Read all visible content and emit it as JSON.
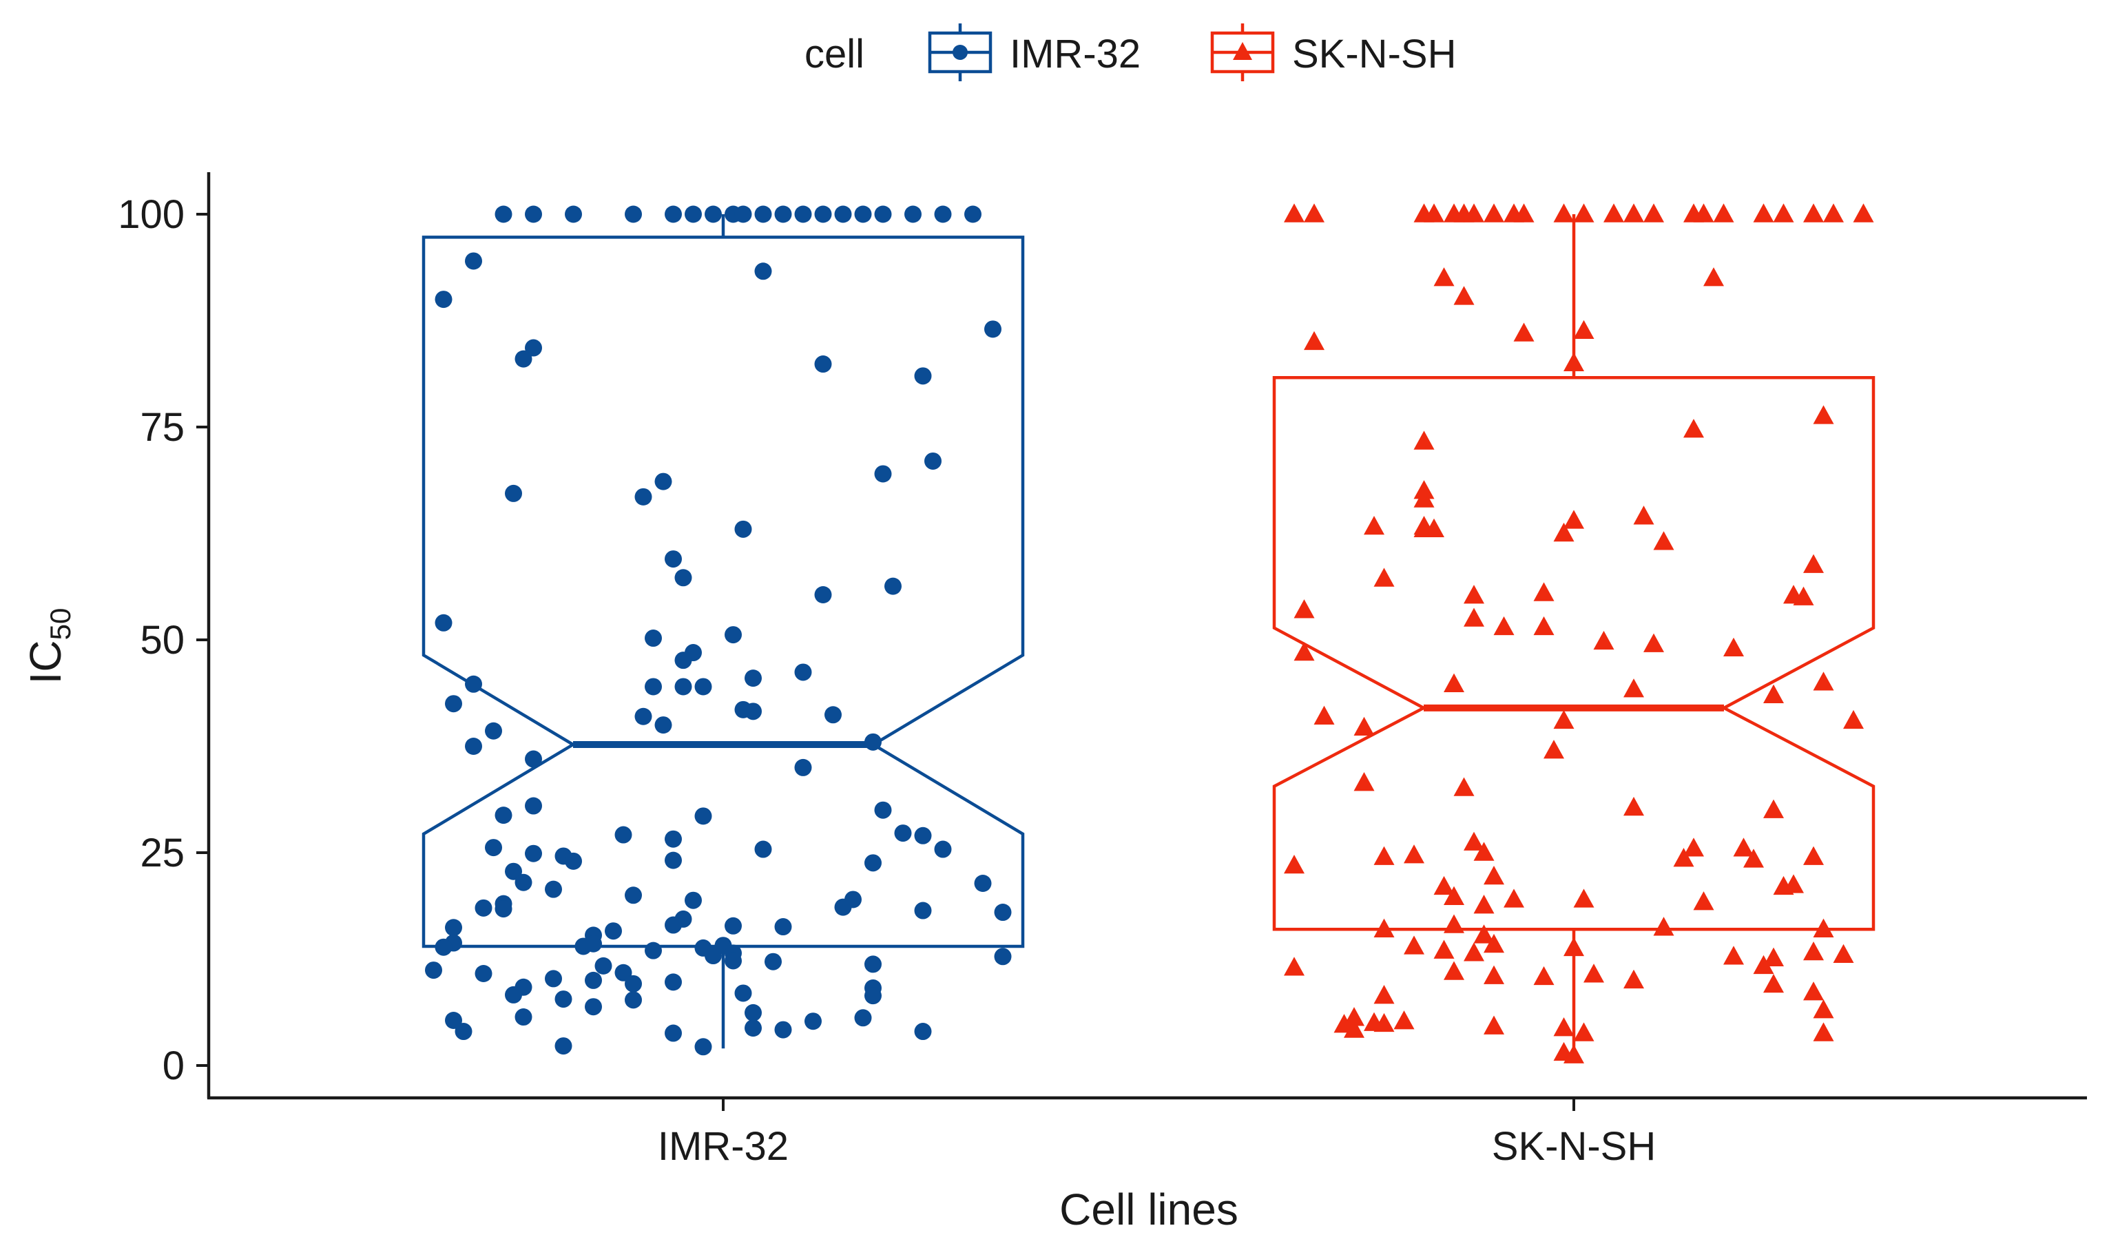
{
  "chart_data": {
    "type": "boxplot",
    "notched": true,
    "jitter_points": true,
    "xlabel": "Cell lines",
    "ylabel": "IC",
    "ylabel_sub": "50",
    "ylim": [
      -4,
      105
    ],
    "yticks": [
      0,
      25,
      50,
      75,
      100
    ],
    "categories": [
      "IMR-32",
      "SK-N-SH"
    ],
    "legend": {
      "title": "cell",
      "position": "top",
      "entries": [
        "IMR-32",
        "SK-N-SH"
      ]
    },
    "series": [
      {
        "name": "IMR-32",
        "color": "#0b4c94",
        "marker": "circle",
        "stats": {
          "lower_whisker": 2,
          "q1": 14,
          "median": 37.7,
          "q3": 97.3,
          "upper_whisker": 100,
          "notch_low": 27.2,
          "notch_high": 48.2
        },
        "points": [
          [
            -0.22,
            100
          ],
          [
            -0.19,
            100
          ],
          [
            -0.15,
            100
          ],
          [
            -0.09,
            100
          ],
          [
            -0.05,
            100
          ],
          [
            -0.03,
            100
          ],
          [
            -0.01,
            100
          ],
          [
            0.01,
            100
          ],
          [
            0.02,
            100
          ],
          [
            0.04,
            100
          ],
          [
            0.06,
            100
          ],
          [
            0.08,
            100
          ],
          [
            0.1,
            100
          ],
          [
            0.12,
            100
          ],
          [
            0.14,
            100
          ],
          [
            0.16,
            100
          ],
          [
            0.19,
            100
          ],
          [
            0.22,
            100
          ],
          [
            0.25,
            100
          ],
          [
            -0.25,
            94.5
          ],
          [
            -0.28,
            90
          ],
          [
            0.04,
            93.3
          ],
          [
            0.27,
            86.5
          ],
          [
            -0.19,
            84.3
          ],
          [
            -0.2,
            83
          ],
          [
            0.1,
            82.4
          ],
          [
            0.2,
            81
          ],
          [
            0.21,
            71
          ],
          [
            0.16,
            69.5
          ],
          [
            -0.06,
            68.6
          ],
          [
            -0.21,
            67.2
          ],
          [
            -0.08,
            66.8
          ],
          [
            0.02,
            63
          ],
          [
            -0.05,
            59.5
          ],
          [
            -0.04,
            57.3
          ],
          [
            0.17,
            56.3
          ],
          [
            0.1,
            55.3
          ],
          [
            -0.28,
            52
          ],
          [
            0.01,
            50.6
          ],
          [
            -0.07,
            50.2
          ],
          [
            -0.03,
            48.5
          ],
          [
            -0.04,
            47.6
          ],
          [
            0.08,
            46.2
          ],
          [
            0.03,
            45.5
          ],
          [
            -0.25,
            44.8
          ],
          [
            -0.07,
            44.5
          ],
          [
            -0.04,
            44.5
          ],
          [
            -0.02,
            44.5
          ],
          [
            -0.27,
            42.5
          ],
          [
            0.02,
            41.8
          ],
          [
            0.03,
            41.6
          ],
          [
            0.11,
            41.2
          ],
          [
            -0.08,
            41
          ],
          [
            -0.06,
            40
          ],
          [
            -0.23,
            39.3
          ],
          [
            0.15,
            38
          ],
          [
            -0.25,
            37.5
          ],
          [
            -0.19,
            36
          ],
          [
            0.08,
            35
          ],
          [
            -0.19,
            30.5
          ],
          [
            -0.22,
            29.4
          ],
          [
            -0.02,
            29.3
          ],
          [
            0.16,
            30
          ],
          [
            -0.1,
            27.1
          ],
          [
            0.18,
            27.3
          ],
          [
            0.2,
            27
          ],
          [
            -0.05,
            26.6
          ],
          [
            0.22,
            25.4
          ],
          [
            -0.23,
            25.6
          ],
          [
            0.04,
            25.4
          ],
          [
            -0.19,
            24.9
          ],
          [
            -0.16,
            24.6
          ],
          [
            -0.15,
            24
          ],
          [
            -0.05,
            24.1
          ],
          [
            0.15,
            23.8
          ],
          [
            -0.21,
            22.8
          ],
          [
            -0.2,
            21.5
          ],
          [
            0.26,
            21.4
          ],
          [
            -0.17,
            20.7
          ],
          [
            -0.09,
            20
          ],
          [
            -0.03,
            19.4
          ],
          [
            -0.22,
            19
          ],
          [
            0.13,
            19.5
          ],
          [
            0.12,
            18.6
          ],
          [
            -0.22,
            18.4
          ],
          [
            -0.24,
            18.5
          ],
          [
            0.2,
            18.2
          ],
          [
            0.28,
            18
          ],
          [
            -0.04,
            17.2
          ],
          [
            -0.05,
            16.5
          ],
          [
            0.01,
            16.4
          ],
          [
            0.06,
            16.3
          ],
          [
            -0.27,
            16.2
          ],
          [
            -0.11,
            15.8
          ],
          [
            -0.13,
            15.3
          ],
          [
            -0.27,
            14.4
          ],
          [
            -0.28,
            13.9
          ],
          [
            -0.14,
            14
          ],
          [
            -0.13,
            14.3
          ],
          [
            -0.07,
            13.5
          ],
          [
            -0.02,
            13.8
          ],
          [
            0.0,
            14.1
          ],
          [
            0.01,
            13.2
          ],
          [
            -0.01,
            12.9
          ],
          [
            0.01,
            12.3
          ],
          [
            0.05,
            12.2
          ],
          [
            0.28,
            12.8
          ],
          [
            -0.29,
            11.2
          ],
          [
            -0.24,
            10.8
          ],
          [
            -0.12,
            11.7
          ],
          [
            -0.1,
            10.9
          ],
          [
            -0.13,
            10
          ],
          [
            -0.17,
            10.2
          ],
          [
            0.15,
            11.9
          ],
          [
            -0.05,
            9.8
          ],
          [
            -0.09,
            9.6
          ],
          [
            -0.2,
            9.2
          ],
          [
            -0.21,
            8.3
          ],
          [
            -0.16,
            7.8
          ],
          [
            -0.09,
            7.7
          ],
          [
            0.02,
            8.5
          ],
          [
            0.15,
            9.1
          ],
          [
            0.15,
            8.2
          ],
          [
            -0.13,
            6.9
          ],
          [
            0.03,
            6.2
          ],
          [
            -0.2,
            5.7
          ],
          [
            -0.27,
            5.3
          ],
          [
            0.09,
            5.2
          ],
          [
            0.14,
            5.6
          ],
          [
            -0.26,
            4
          ],
          [
            0.06,
            4.2
          ],
          [
            0.03,
            4.4
          ],
          [
            0.2,
            4
          ],
          [
            -0.05,
            3.8
          ],
          [
            -0.16,
            2.3
          ],
          [
            -0.02,
            2.2
          ]
        ]
      },
      {
        "name": "SK-N-SH",
        "color": "#ee2a0f",
        "marker": "triangle",
        "stats": {
          "lower_whisker": 2,
          "q1": 16,
          "median": 42,
          "q3": 80.8,
          "upper_whisker": 100,
          "notch_low": 32.8,
          "notch_high": 51.4
        },
        "points": [
          [
            -0.28,
            100
          ],
          [
            -0.26,
            100
          ],
          [
            -0.15,
            100
          ],
          [
            -0.14,
            100
          ],
          [
            -0.12,
            100
          ],
          [
            -0.11,
            100
          ],
          [
            -0.1,
            100
          ],
          [
            -0.08,
            100
          ],
          [
            -0.06,
            100
          ],
          [
            -0.05,
            100
          ],
          [
            -0.01,
            100
          ],
          [
            0.01,
            100
          ],
          [
            0.04,
            100
          ],
          [
            0.06,
            100
          ],
          [
            0.08,
            100
          ],
          [
            0.12,
            100
          ],
          [
            0.13,
            100
          ],
          [
            0.15,
            100
          ],
          [
            0.19,
            100
          ],
          [
            0.21,
            100
          ],
          [
            0.24,
            100
          ],
          [
            0.26,
            100
          ],
          [
            0.29,
            100
          ],
          [
            -0.13,
            92.5
          ],
          [
            -0.11,
            90.3
          ],
          [
            0.14,
            92.5
          ],
          [
            -0.05,
            86
          ],
          [
            0.01,
            86.3
          ],
          [
            -0.26,
            85
          ],
          [
            0.0,
            82.5
          ],
          [
            0.12,
            74.7
          ],
          [
            0.25,
            76.3
          ],
          [
            -0.15,
            73.3
          ],
          [
            -0.15,
            67.5
          ],
          [
            -0.15,
            66.5
          ],
          [
            -0.2,
            63.3
          ],
          [
            -0.15,
            63.3
          ],
          [
            -0.15,
            63
          ],
          [
            -0.14,
            63
          ],
          [
            0.0,
            64
          ],
          [
            -0.01,
            62.5
          ],
          [
            0.07,
            64.5
          ],
          [
            0.09,
            61.5
          ],
          [
            -0.19,
            57.2
          ],
          [
            -0.1,
            55.2
          ],
          [
            -0.03,
            55.5
          ],
          [
            0.24,
            58.8
          ],
          [
            0.22,
            55.2
          ],
          [
            0.23,
            55
          ],
          [
            -0.27,
            53.5
          ],
          [
            -0.1,
            52.5
          ],
          [
            -0.07,
            51.5
          ],
          [
            -0.03,
            51.5
          ],
          [
            0.03,
            49.8
          ],
          [
            0.08,
            49.5
          ],
          [
            0.16,
            49
          ],
          [
            -0.27,
            48.5
          ],
          [
            -0.12,
            44.8
          ],
          [
            0.06,
            44.2
          ],
          [
            0.25,
            45
          ],
          [
            0.2,
            43.5
          ],
          [
            0.28,
            40.5
          ],
          [
            -0.25,
            41
          ],
          [
            -0.21,
            39.7
          ],
          [
            -0.01,
            40.5
          ],
          [
            -0.02,
            37
          ],
          [
            -0.21,
            33.2
          ],
          [
            -0.11,
            32.6
          ],
          [
            0.06,
            30.3
          ],
          [
            0.2,
            30
          ],
          [
            -0.1,
            26.2
          ],
          [
            -0.09,
            25
          ],
          [
            0.12,
            25.5
          ],
          [
            0.17,
            25.5
          ],
          [
            0.18,
            24.2
          ],
          [
            0.24,
            24.5
          ],
          [
            0.11,
            24.3
          ],
          [
            -0.19,
            24.5
          ],
          [
            -0.16,
            24.7
          ],
          [
            -0.28,
            23.5
          ],
          [
            -0.08,
            22.2
          ],
          [
            -0.13,
            21
          ],
          [
            0.01,
            19.5
          ],
          [
            0.13,
            19.2
          ],
          [
            -0.12,
            19.8
          ],
          [
            -0.06,
            19.5
          ],
          [
            -0.09,
            18.8
          ],
          [
            0.21,
            21
          ],
          [
            0.22,
            21.2
          ],
          [
            -0.19,
            16
          ],
          [
            -0.12,
            16.5
          ],
          [
            0.09,
            16.2
          ],
          [
            0.25,
            16
          ],
          [
            -0.16,
            14
          ],
          [
            -0.09,
            15.3
          ],
          [
            -0.08,
            14.2
          ],
          [
            -0.13,
            13.5
          ],
          [
            -0.1,
            13.2
          ],
          [
            0.0,
            13.8
          ],
          [
            0.24,
            13.3
          ],
          [
            0.27,
            13
          ],
          [
            0.16,
            12.8
          ],
          [
            0.2,
            12.6
          ],
          [
            0.19,
            11.7
          ],
          [
            -0.28,
            11.5
          ],
          [
            -0.12,
            11
          ],
          [
            -0.03,
            10.4
          ],
          [
            -0.08,
            10.5
          ],
          [
            0.02,
            10.7
          ],
          [
            0.06,
            10
          ],
          [
            0.2,
            9.5
          ],
          [
            0.24,
            8.6
          ],
          [
            0.25,
            6.5
          ],
          [
            -0.19,
            8.2
          ],
          [
            -0.22,
            5.6
          ],
          [
            -0.23,
            4.8
          ],
          [
            -0.22,
            4.2
          ],
          [
            -0.19,
            4.9
          ],
          [
            -0.17,
            5.2
          ],
          [
            -0.2,
            5
          ],
          [
            -0.08,
            4.6
          ],
          [
            -0.01,
            4.4
          ],
          [
            0.01,
            3.8
          ],
          [
            0.25,
            3.8
          ],
          [
            -0.01,
            1.5
          ],
          [
            0.0,
            1.2
          ]
        ]
      }
    ]
  }
}
